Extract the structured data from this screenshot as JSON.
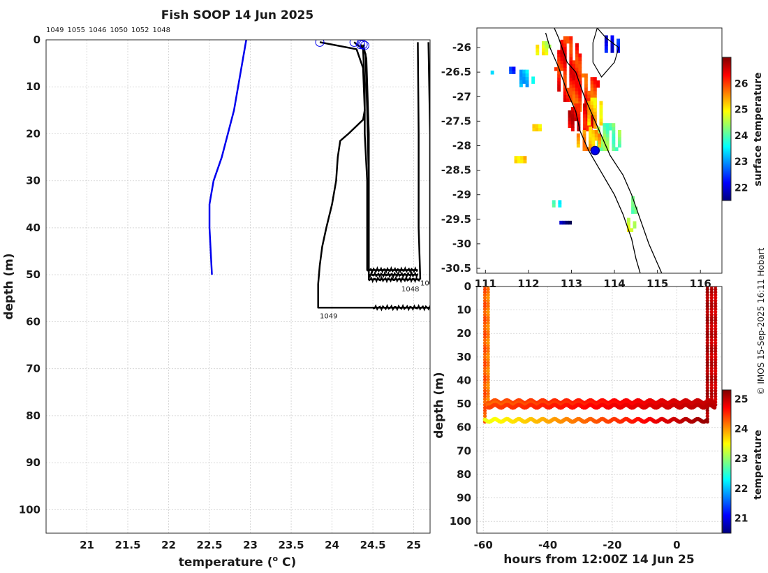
{
  "title": "Fish SOOP 14 Jun 2025",
  "credit": "© IMOS 15-Sep-2025 16:11 Hobart",
  "chart_data": [
    {
      "id": "profiles",
      "type": "line",
      "xlabel": "temperature (",
      "xlabel_sup": "o",
      "xlabel_unit": "C)",
      "ylabel": "depth (m)",
      "xlim": [
        20.5,
        25.2
      ],
      "ylim": [
        105,
        0
      ],
      "xticks": [
        21,
        21.5,
        22,
        22.5,
        23,
        23.5,
        24,
        24.5,
        25
      ],
      "xtick_labels": [
        "21",
        "21.5",
        "22",
        "22.5",
        "23",
        "23.5",
        "24",
        "24.5",
        "25"
      ],
      "yticks": [
        0,
        10,
        20,
        30,
        40,
        50,
        60,
        70,
        80,
        90,
        100
      ],
      "ytick_labels": [
        "0",
        "10",
        "20",
        "30",
        "40",
        "50",
        "60",
        "70",
        "80",
        "90",
        "100"
      ],
      "top_ids": [
        "1049",
        "1055",
        "1046",
        "1050",
        "1052",
        "1048"
      ],
      "climatology": {
        "color": "#0000ee",
        "temp": [
          22.95,
          22.9,
          22.8,
          22.65,
          22.55,
          22.5,
          22.5,
          22.53
        ],
        "depth": [
          0,
          5,
          15,
          25,
          30,
          35,
          40,
          50
        ]
      },
      "series": [
        {
          "name": "1049",
          "temp": [
            23.85,
            24.3,
            24.38,
            24.4,
            24.38,
            24.2,
            24.1,
            24.07,
            24.05,
            24.0,
            23.93,
            23.88,
            23.85,
            23.83,
            23.83,
            24.5,
            25.0,
            25.2
          ],
          "depth": [
            0.5,
            2,
            6,
            15,
            17,
            20,
            21.5,
            25,
            30,
            35,
            40,
            44,
            48,
            52,
            57,
            57,
            57,
            57
          ]
        },
        {
          "name": "1055",
          "temp": [
            24.27,
            24.38,
            24.4,
            24.4,
            24.43,
            24.43,
            24.43,
            24.9,
            25.05
          ],
          "depth": [
            0.5,
            2,
            10,
            20,
            30,
            40,
            49,
            49,
            49
          ]
        },
        {
          "name": "1046",
          "temp": [
            24.35,
            24.41,
            24.43,
            24.45,
            24.45,
            24.45,
            24.9,
            25.05
          ],
          "depth": [
            1,
            3,
            15,
            30,
            40,
            50,
            50,
            50
          ]
        },
        {
          "name": "1050",
          "temp": [
            24.38,
            24.42,
            24.45,
            24.45,
            24.45,
            24.9,
            25.08
          ],
          "depth": [
            1,
            4,
            20,
            35,
            51,
            51,
            51
          ]
        },
        {
          "name": "1052",
          "temp": [
            25.05,
            25.06,
            25.06,
            25.08
          ],
          "depth": [
            0.5,
            20,
            40,
            51
          ]
        },
        {
          "name": "1048",
          "temp": [
            25.18,
            25.2,
            25.2,
            25.2
          ],
          "depth": [
            0.5,
            20,
            40,
            52
          ]
        }
      ],
      "start_markers": [
        {
          "temp": 23.85,
          "depth": 0.5
        },
        {
          "temp": 24.27,
          "depth": 0.5
        },
        {
          "temp": 24.35,
          "depth": 1
        },
        {
          "temp": 24.38,
          "depth": 1
        },
        {
          "temp": 24.4,
          "depth": 1.2
        }
      ],
      "end_labels": [
        {
          "text": "1049",
          "temp": 23.85,
          "depth": 58.5
        },
        {
          "text": "1052",
          "temp": 25.08,
          "depth": 51.5
        },
        {
          "text": "1048",
          "temp": 24.85,
          "depth": 52.8
        }
      ]
    },
    {
      "id": "map",
      "type": "heatmap",
      "xlim": [
        110.8,
        116.5
      ],
      "ylim": [
        -30.6,
        -25.6
      ],
      "xticks": [
        111,
        112,
        113,
        114,
        115,
        116
      ],
      "xtick_labels": [
        "111",
        "112",
        "113",
        "114",
        "115",
        "116"
      ],
      "yticks": [
        -26,
        -26.5,
        -27,
        -27.5,
        -28,
        -28.5,
        -29,
        -29.5,
        -30,
        -30.5
      ],
      "ytick_labels": [
        "-26",
        "-26.5",
        "-27",
        "-27.5",
        "-28",
        "-28.5",
        "-29",
        "-29.5",
        "-30",
        "-30.5"
      ],
      "colorbar": {
        "label": "surface temperature",
        "range": [
          21.5,
          27
        ],
        "ticks": [
          22,
          23,
          24,
          25,
          26
        ],
        "tick_labels": [
          "22",
          "23",
          "24",
          "25",
          "26"
        ]
      },
      "coast": [
        [
          112.6,
          -25.6
        ],
        [
          112.7,
          -25.8
        ],
        [
          112.9,
          -26.3
        ],
        [
          113.1,
          -26.5
        ],
        [
          113.3,
          -27
        ],
        [
          113.5,
          -27.4
        ],
        [
          113.7,
          -27.8
        ],
        [
          113.9,
          -28.2
        ],
        [
          114.2,
          -28.6
        ],
        [
          114.4,
          -29.0
        ],
        [
          114.6,
          -29.5
        ],
        [
          114.8,
          -30.0
        ],
        [
          115.0,
          -30.4
        ],
        [
          115.1,
          -30.6
        ]
      ],
      "shelf": [
        [
          112.4,
          -25.7
        ],
        [
          112.5,
          -26.0
        ],
        [
          112.7,
          -26.4
        ],
        [
          112.9,
          -26.9
        ],
        [
          113.1,
          -27.3
        ],
        [
          113.2,
          -27.7
        ],
        [
          113.4,
          -28.1
        ],
        [
          113.6,
          -28.4
        ],
        [
          113.8,
          -28.7
        ],
        [
          114.0,
          -29.0
        ],
        [
          114.2,
          -29.4
        ],
        [
          114.4,
          -29.9
        ],
        [
          114.5,
          -30.3
        ],
        [
          114.6,
          -30.6
        ]
      ],
      "bay": [
        [
          113.6,
          -25.6
        ],
        [
          113.8,
          -25.8
        ],
        [
          114.1,
          -26.0
        ],
        [
          114.0,
          -26.3
        ],
        [
          113.7,
          -26.6
        ],
        [
          113.5,
          -26.3
        ],
        [
          113.5,
          -25.9
        ],
        [
          113.6,
          -25.6
        ]
      ],
      "patches": [
        {
          "lon": 112.9,
          "lat": -26.4,
          "rx": 0.3,
          "ry": 0.7,
          "t": 26.2
        },
        {
          "lon": 113.3,
          "lat": -26.9,
          "rx": 0.35,
          "ry": 0.4,
          "t": 26.0
        },
        {
          "lon": 113.2,
          "lat": -27.4,
          "rx": 0.35,
          "ry": 0.3,
          "t": 26.4
        },
        {
          "lon": 113.5,
          "lat": -27.3,
          "rx": 0.2,
          "ry": 0.35,
          "t": 25.2
        },
        {
          "lon": 113.8,
          "lat": -27.8,
          "rx": 0.35,
          "ry": 0.3,
          "t": 24.2
        },
        {
          "lon": 113.35,
          "lat": -27.85,
          "rx": 0.3,
          "ry": 0.25,
          "t": 25.4
        },
        {
          "lon": 112.3,
          "lat": -26.0,
          "rx": 0.2,
          "ry": 0.15,
          "t": 24.8
        },
        {
          "lon": 111.9,
          "lat": -26.6,
          "rx": 0.18,
          "ry": 0.2,
          "t": 23.3
        },
        {
          "lon": 111.6,
          "lat": -26.45,
          "rx": 0.12,
          "ry": 0.08,
          "t": 22.3
        },
        {
          "lon": 112.1,
          "lat": -27.6,
          "rx": 0.15,
          "ry": 0.1,
          "t": 24.9
        },
        {
          "lon": 111.8,
          "lat": -28.25,
          "rx": 0.2,
          "ry": 0.1,
          "t": 25.3
        },
        {
          "lon": 112.6,
          "lat": -29.15,
          "rx": 0.12,
          "ry": 0.1,
          "t": 23.8
        },
        {
          "lon": 114.4,
          "lat": -29.2,
          "rx": 0.08,
          "ry": 0.18,
          "t": 23.9
        },
        {
          "lon": 114.3,
          "lat": -29.6,
          "rx": 0.15,
          "ry": 0.15,
          "t": 24.8
        },
        {
          "lon": 113.9,
          "lat": -25.9,
          "rx": 0.2,
          "ry": 0.2,
          "t": 22.2
        },
        {
          "lon": 112.85,
          "lat": -29.55,
          "rx": 0.2,
          "ry": 0.05,
          "t": 21.6
        },
        {
          "lon": 111.1,
          "lat": -26.5,
          "rx": 0.05,
          "ry": 0.04,
          "t": 23.2
        },
        {
          "lon": 110.95,
          "lat": -27.65,
          "rx": 0.05,
          "ry": 0.04,
          "t": 24.0
        }
      ],
      "ship": {
        "lon": 113.55,
        "lat": -28.1
      }
    },
    {
      "id": "section",
      "type": "scatter",
      "xlabel": "hours from 12:00Z 14 Jun 25",
      "ylabel": "depth (m)",
      "xlim": [
        -62,
        14
      ],
      "ylim": [
        105,
        0
      ],
      "xticks": [
        -60,
        -40,
        -20,
        0
      ],
      "xtick_labels": [
        "-60",
        "-40",
        "-20",
        "0"
      ],
      "yticks": [
        0,
        10,
        20,
        30,
        40,
        50,
        60,
        70,
        80,
        90,
        100
      ],
      "ytick_labels": [
        "0",
        "10",
        "20",
        "30",
        "40",
        "50",
        "60",
        "70",
        "80",
        "90",
        "100"
      ],
      "colorbar": {
        "label": "temperature",
        "range": [
          20.5,
          25.3
        ],
        "ticks": [
          21,
          22,
          23,
          24,
          25
        ],
        "tick_labels": [
          "21",
          "22",
          "23",
          "24",
          "25"
        ]
      },
      "columns": [
        {
          "x": -59.5,
          "top": 0,
          "bottom": 58,
          "t": 24.3
        },
        {
          "x": -58.5,
          "top": 0,
          "bottom": 50,
          "t": 24.1
        },
        {
          "x": 9.5,
          "top": 0,
          "bottom": 58,
          "t": 25.1
        },
        {
          "x": 10.8,
          "top": 0,
          "bottom": 50,
          "t": 25.0
        },
        {
          "x": 12.0,
          "top": 0,
          "bottom": 51,
          "t": 24.95
        }
      ],
      "bottom_bands": [
        {
          "depth": 49,
          "x0": -58.5,
          "x1": 12,
          "t0": 24.3,
          "t1": 25.0
        },
        {
          "depth": 50,
          "x0": -58.5,
          "x1": 12,
          "t0": 24.2,
          "t1": 25.0
        },
        {
          "depth": 51,
          "x0": -58.5,
          "x1": 12,
          "t0": 24.4,
          "t1": 25.05
        },
        {
          "depth": 57,
          "x0": -59.5,
          "x1": 9.5,
          "t0": 23.4,
          "t1": 25.2
        }
      ]
    }
  ]
}
